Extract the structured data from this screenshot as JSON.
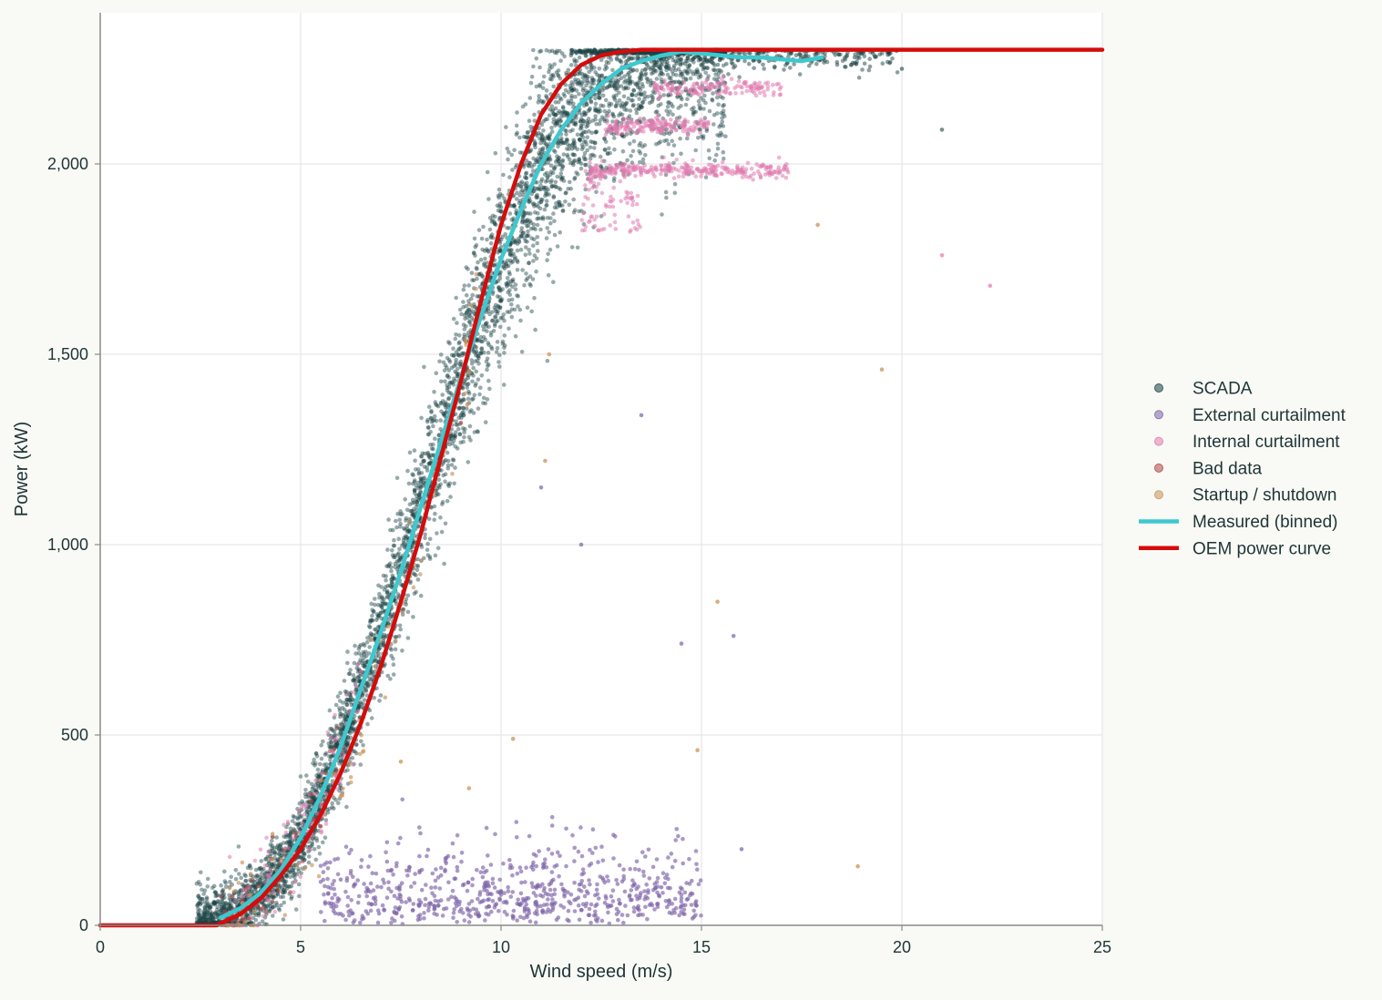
{
  "chart_data": {
    "type": "scatter",
    "title": "",
    "xlabel": "Wind speed (m/s)",
    "ylabel": "Power (kW)",
    "xlim": [
      0,
      25
    ],
    "ylim": [
      0,
      2400
    ],
    "x_ticks": [
      0,
      5,
      10,
      15,
      20,
      25
    ],
    "x_tick_labels": [
      "0",
      "5",
      "10",
      "15",
      "20",
      "25"
    ],
    "y_ticks": [
      0,
      500,
      1000,
      1500,
      2000
    ],
    "y_tick_labels": [
      "0",
      "500",
      "1,000",
      "1,500",
      "2,000"
    ],
    "grid": true,
    "legend_position": "right",
    "series": [
      {
        "name": "SCADA",
        "kind": "scatter",
        "color": "#1b4244",
        "description": "dense band following measured curve, plus sparse points near rated at high wind",
        "sample": [
          [
            2.5,
            5
          ],
          [
            3,
            20
          ],
          [
            4,
            90
          ],
          [
            5,
            220
          ],
          [
            6,
            430
          ],
          [
            7,
            700
          ],
          [
            8,
            1000
          ],
          [
            9,
            1340
          ],
          [
            10,
            1640
          ],
          [
            11,
            1900
          ],
          [
            12,
            2100
          ],
          [
            13,
            2240
          ],
          [
            14,
            2285
          ],
          [
            15,
            2295
          ],
          [
            17,
            2280
          ],
          [
            19,
            2290
          ],
          [
            20,
            2250
          ],
          [
            21,
            2090
          ]
        ]
      },
      {
        "name": "External curtailment",
        "kind": "scatter",
        "color": "#7d62a8",
        "description": "points scattered 0-300 kW between 5 and 16 m/s, plus sparse points at mid power",
        "sample": [
          [
            6,
            120
          ],
          [
            8,
            60
          ],
          [
            10,
            90
          ],
          [
            12,
            40
          ],
          [
            14,
            100
          ],
          [
            16,
            200
          ],
          [
            12,
            1000
          ],
          [
            11,
            1150
          ],
          [
            13.5,
            1340
          ],
          [
            15.8,
            760
          ],
          [
            14.5,
            740
          ]
        ]
      },
      {
        "name": "Internal curtailment",
        "kind": "scatter",
        "color": "#e07aae",
        "description": "horizontal bands near 1980, 2100 and 2200 kW between 12 and 17 m/s",
        "sample": [
          [
            12.5,
            1980
          ],
          [
            14,
            1985
          ],
          [
            16,
            1985
          ],
          [
            13,
            2100
          ],
          [
            14.5,
            2100
          ],
          [
            14,
            2200
          ],
          [
            16.5,
            2200
          ],
          [
            21,
            1760
          ],
          [
            22.2,
            1680
          ]
        ]
      },
      {
        "name": "Bad data",
        "kind": "scatter",
        "color": "#b34747",
        "sample": [
          [
            3.5,
            40
          ],
          [
            4.5,
            120
          ],
          [
            5.5,
            260
          ],
          [
            9,
            1320
          ]
        ]
      },
      {
        "name": "Startup / shutdown",
        "kind": "scatter",
        "color": "#c9935a",
        "sample": [
          [
            4.3,
            240
          ],
          [
            5.5,
            380
          ],
          [
            7.5,
            430
          ],
          [
            9.2,
            360
          ],
          [
            10.3,
            490
          ],
          [
            11.1,
            1220
          ],
          [
            11.2,
            1500
          ],
          [
            14.9,
            460
          ],
          [
            15.4,
            850
          ],
          [
            17.9,
            1840
          ],
          [
            19.5,
            1460
          ],
          [
            18.9,
            155
          ]
        ]
      },
      {
        "name": "Measured (binned)",
        "kind": "line",
        "color": "#3ec8cf",
        "x": [
          3,
          3.5,
          4,
          4.5,
          5,
          5.5,
          6,
          6.5,
          7,
          7.5,
          8,
          8.5,
          9,
          9.5,
          10,
          10.5,
          11,
          11.5,
          12,
          12.5,
          13,
          13.5,
          14,
          14.5,
          15,
          15.5,
          16,
          16.5,
          17,
          17.5,
          18
        ],
        "y": [
          20,
          45,
          85,
          145,
          230,
          340,
          470,
          620,
          770,
          930,
          1100,
          1270,
          1440,
          1600,
          1750,
          1880,
          2000,
          2090,
          2160,
          2210,
          2250,
          2270,
          2285,
          2295,
          2290,
          2285,
          2280,
          2280,
          2275,
          2270,
          2280
        ]
      },
      {
        "name": "OEM power curve",
        "kind": "line",
        "color": "#d40c0c",
        "x": [
          0,
          2.9,
          3,
          3.5,
          4,
          4.5,
          5,
          5.5,
          6,
          6.5,
          7,
          7.5,
          8,
          8.5,
          9,
          9.5,
          10,
          10.5,
          11,
          11.5,
          12,
          12.5,
          13,
          13.5,
          14,
          14.5,
          15,
          15.5,
          25
        ],
        "y": [
          0,
          0,
          5,
          30,
          70,
          130,
          200,
          290,
          400,
          530,
          680,
          850,
          1030,
          1230,
          1430,
          1640,
          1840,
          2000,
          2130,
          2210,
          2260,
          2285,
          2295,
          2300,
          2300,
          2300,
          2300,
          2300,
          2300
        ]
      }
    ]
  }
}
